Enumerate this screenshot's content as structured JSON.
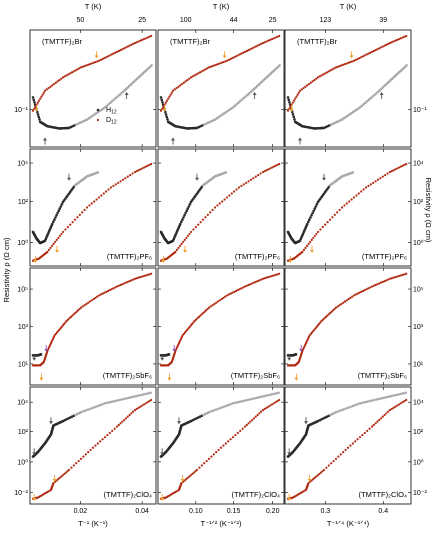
{
  "colors": {
    "deut": "#b22a12",
    "hyd_light": "#a9a9a9",
    "hyd_dark": "#2b2b2b",
    "arrow_orange": "#f0a030",
    "arrow_gray": "#555555",
    "arrow_purple": "#9a59b5"
  },
  "chart_data": {
    "type": "scatter",
    "layout": "4x3 grid",
    "ylabel_left": "Resistivity ρ (Ω cm)",
    "ylabel_right": "Resistivity ρ (Ω cm)",
    "series_names": [
      "H12",
      "D12"
    ],
    "legend_placement": "top-left panel, lower middle",
    "columns": [
      {
        "xlabel": "T⁻¹ (K⁻¹)",
        "xticks": [
          "0.02",
          "0.04"
        ],
        "top_axis_label": "T (K)",
        "top_ticks": [
          "50",
          "25"
        ]
      },
      {
        "xlabel": "T⁻¹ᐟ² (K⁻¹ᐟ²)",
        "xticks": [
          "0.10",
          "0.15",
          "0.20"
        ],
        "top_axis_label": "T (K)",
        "top_ticks": [
          "100",
          "44",
          "25"
        ]
      },
      {
        "xlabel": "T⁻¹ᐟ⁴ (K⁻¹ᐟ⁴)",
        "xticks": [
          "0.3",
          "0.4"
        ],
        "top_axis_label": "T (K)",
        "top_ticks": [
          "123",
          "39"
        ]
      }
    ],
    "rows": [
      {
        "compound": "(TMTTF)₂Br",
        "yticks": [
          "10⁻¹"
        ]
      },
      {
        "compound": "(TMTTF)₂PF₆",
        "yticks": [
          "10⁰",
          "10²",
          "10⁴"
        ]
      },
      {
        "compound": "(TMTTF)₂SbF₆",
        "yticks": [
          "10¹",
          "10³",
          "10⁵"
        ]
      },
      {
        "compound": "(TMTTF)₂ClO₄",
        "yticks": [
          "10⁻²",
          "10⁰",
          "10²",
          "10⁴"
        ]
      }
    ],
    "panel_curves": {
      "row1": {
        "H12": [
          [
            0.0,
            0.42
          ],
          [
            0.06,
            0.2
          ],
          [
            0.12,
            0.16
          ],
          [
            0.22,
            0.14
          ],
          [
            0.3,
            0.145
          ],
          [
            0.45,
            0.22
          ],
          [
            0.6,
            0.33
          ],
          [
            0.75,
            0.47
          ],
          [
            0.88,
            0.6
          ],
          [
            1.0,
            0.72
          ]
        ],
        "D12": [
          [
            0.0,
            0.3
          ],
          [
            0.1,
            0.48
          ],
          [
            0.25,
            0.6
          ],
          [
            0.4,
            0.69
          ],
          [
            0.55,
            0.75
          ],
          [
            0.7,
            0.83
          ],
          [
            0.85,
            0.91
          ],
          [
            1.0,
            0.98
          ]
        ],
        "arrows": [
          {
            "x": 0.03,
            "y": 0.3,
            "color": "orange"
          },
          {
            "x": 0.53,
            "y": 0.78,
            "color": "orange"
          },
          {
            "x": 0.1,
            "y": 0.05,
            "color": "gray"
          },
          {
            "x": 0.78,
            "y": 0.46,
            "color": "gray"
          }
        ]
      },
      "row2": {
        "H12": [
          [
            0.0,
            0.28
          ],
          [
            0.03,
            0.22
          ],
          [
            0.06,
            0.18
          ],
          [
            0.1,
            0.2
          ],
          [
            0.16,
            0.35
          ],
          [
            0.25,
            0.55
          ],
          [
            0.35,
            0.7
          ],
          [
            0.45,
            0.78
          ],
          [
            0.55,
            0.82
          ]
        ],
        "D12": [
          [
            0.0,
            0.02
          ],
          [
            0.05,
            0.04
          ],
          [
            0.12,
            0.1
          ],
          [
            0.25,
            0.28
          ],
          [
            0.45,
            0.5
          ],
          [
            0.65,
            0.68
          ],
          [
            0.85,
            0.82
          ],
          [
            1.0,
            0.9
          ]
        ],
        "arrows": [
          {
            "x": 0.02,
            "y": 0.01,
            "color": "orange"
          },
          {
            "x": 0.2,
            "y": 0.1,
            "color": "orange"
          },
          {
            "x": 0.3,
            "y": 0.75,
            "color": "gray"
          }
        ]
      },
      "row3": {
        "H12": [
          [
            0.0,
            0.24
          ],
          [
            0.04,
            0.24
          ],
          [
            0.07,
            0.25
          ]
        ],
        "D12": [
          [
            0.0,
            0.15
          ],
          [
            0.06,
            0.15
          ],
          [
            0.09,
            0.18
          ],
          [
            0.12,
            0.28
          ],
          [
            0.18,
            0.42
          ],
          [
            0.28,
            0.55
          ],
          [
            0.4,
            0.67
          ],
          [
            0.55,
            0.78
          ],
          [
            0.7,
            0.86
          ],
          [
            0.85,
            0.93
          ],
          [
            1.0,
            0.98
          ]
        ],
        "arrows": [
          {
            "x": 0.01,
            "y": 0.2,
            "color": "gray"
          },
          {
            "x": 0.07,
            "y": 0.02,
            "color": "orange"
          },
          {
            "x": 0.11,
            "y": 0.28,
            "color": "purple"
          }
        ]
      },
      "row4": {
        "H12": [
          [
            0.0,
            0.4
          ],
          [
            0.04,
            0.44
          ],
          [
            0.1,
            0.52
          ],
          [
            0.15,
            0.6
          ],
          [
            0.17,
            0.68
          ],
          [
            0.25,
            0.72
          ],
          [
            0.4,
            0.8
          ],
          [
            0.6,
            0.88
          ],
          [
            0.8,
            0.93
          ],
          [
            1.0,
            0.98
          ]
        ],
        "D12": [
          [
            0.0,
            0.02
          ],
          [
            0.04,
            0.03
          ],
          [
            0.15,
            0.1
          ],
          [
            0.17,
            0.16
          ],
          [
            0.3,
            0.28
          ],
          [
            0.5,
            0.48
          ],
          [
            0.7,
            0.67
          ],
          [
            0.85,
            0.82
          ],
          [
            1.0,
            0.92
          ]
        ],
        "arrows": [
          {
            "x": 0.01,
            "y": 0.01,
            "color": "orange"
          },
          {
            "x": 0.18,
            "y": 0.18,
            "color": "orange"
          },
          {
            "x": 0.01,
            "y": 0.42,
            "color": "gray"
          },
          {
            "x": 0.15,
            "y": 0.7,
            "color": "gray"
          }
        ]
      }
    }
  }
}
